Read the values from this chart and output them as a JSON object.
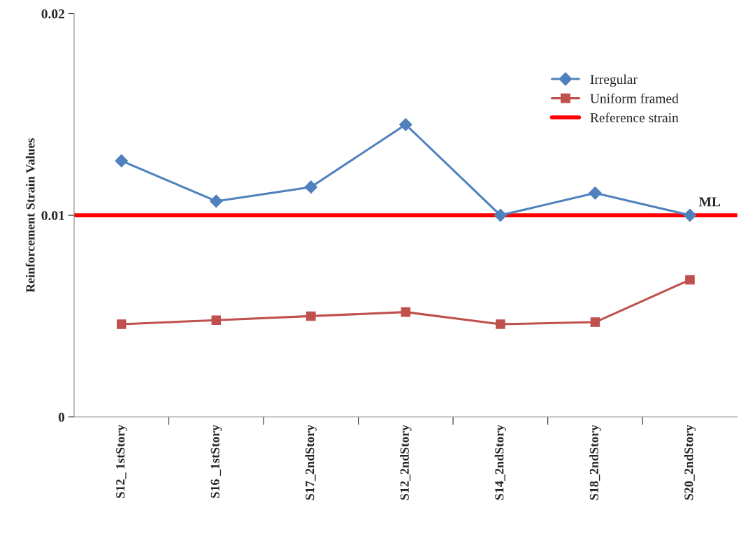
{
  "chart_data": {
    "type": "line",
    "ylabel": "Reinforcement Strain Values",
    "categories": [
      "S12_ 1stStory",
      "S16 _1stStory",
      "S17_2ndStory",
      "S12_2ndStory",
      "S14_2ndStory",
      "S18_2ndStory",
      "S20_2ndStory"
    ],
    "series": [
      {
        "name": "Irregular",
        "color": "#4f81bd",
        "marker": "diamond",
        "values": [
          0.0127,
          0.0107,
          0.0114,
          0.0145,
          0.01,
          0.0111,
          0.01
        ]
      },
      {
        "name": "Uniform framed",
        "color": "#c0504d",
        "marker": "square",
        "values": [
          0.0046,
          0.0048,
          0.005,
          0.0052,
          0.0046,
          0.0047,
          0.0068
        ]
      }
    ],
    "ref_lines": [
      {
        "axis": "y",
        "value": 0.01,
        "label": "Reference strain",
        "color": "#ff0000"
      }
    ],
    "annotations": [
      "ML"
    ],
    "ylim": [
      0,
      0.02
    ],
    "yticks": [
      0,
      0.01,
      0.02
    ],
    "grid": false,
    "legend": "top right"
  }
}
